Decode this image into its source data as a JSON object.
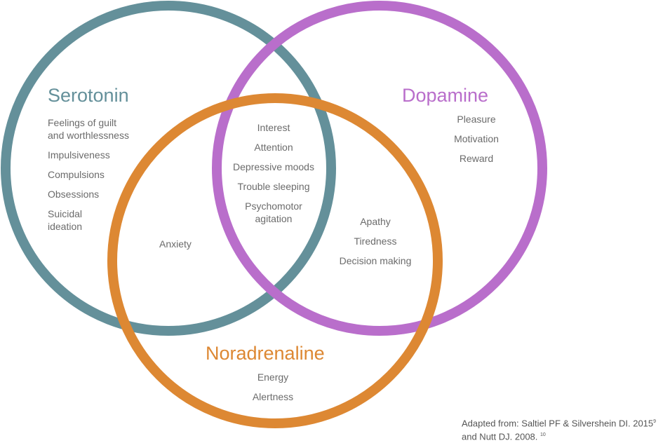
{
  "circles": [
    {
      "name": "Serotonin",
      "color": "#64909a"
    },
    {
      "name": "Dopamine",
      "color": "#b96ecb"
    },
    {
      "name": "Noradrenaline",
      "color": "#dd8833"
    }
  ],
  "serotonin": {
    "title": "Serotonin",
    "items": [
      "Feelings of guilt\nand worthlessness",
      "Impulsiveness",
      "Compulsions",
      "Obsessions",
      "Suicidal\nideation"
    ]
  },
  "dopamine": {
    "title": "Dopamine",
    "items": [
      "Pleasure",
      "Motivation",
      "Reward"
    ]
  },
  "noradrenaline": {
    "title": "Noradrenaline",
    "items": [
      "Energy",
      "Alertness"
    ]
  },
  "overlap_all": {
    "items": [
      "Interest",
      "Attention",
      "Depressive moods",
      "Trouble sleeping",
      "Psychomotor\nagitation"
    ]
  },
  "overlap_serotonin_noradrenaline": {
    "items": [
      "Anxiety"
    ]
  },
  "overlap_dopamine_noradrenaline": {
    "items": [
      "Apathy",
      "Tiredness",
      "Decision making"
    ]
  },
  "source": {
    "line1": "Adapted from: Saltiel PF & Silvershein DI. 2015",
    "ref1": "9",
    "line2": "and Nutt DJ. 2008.",
    "ref2": "10"
  }
}
